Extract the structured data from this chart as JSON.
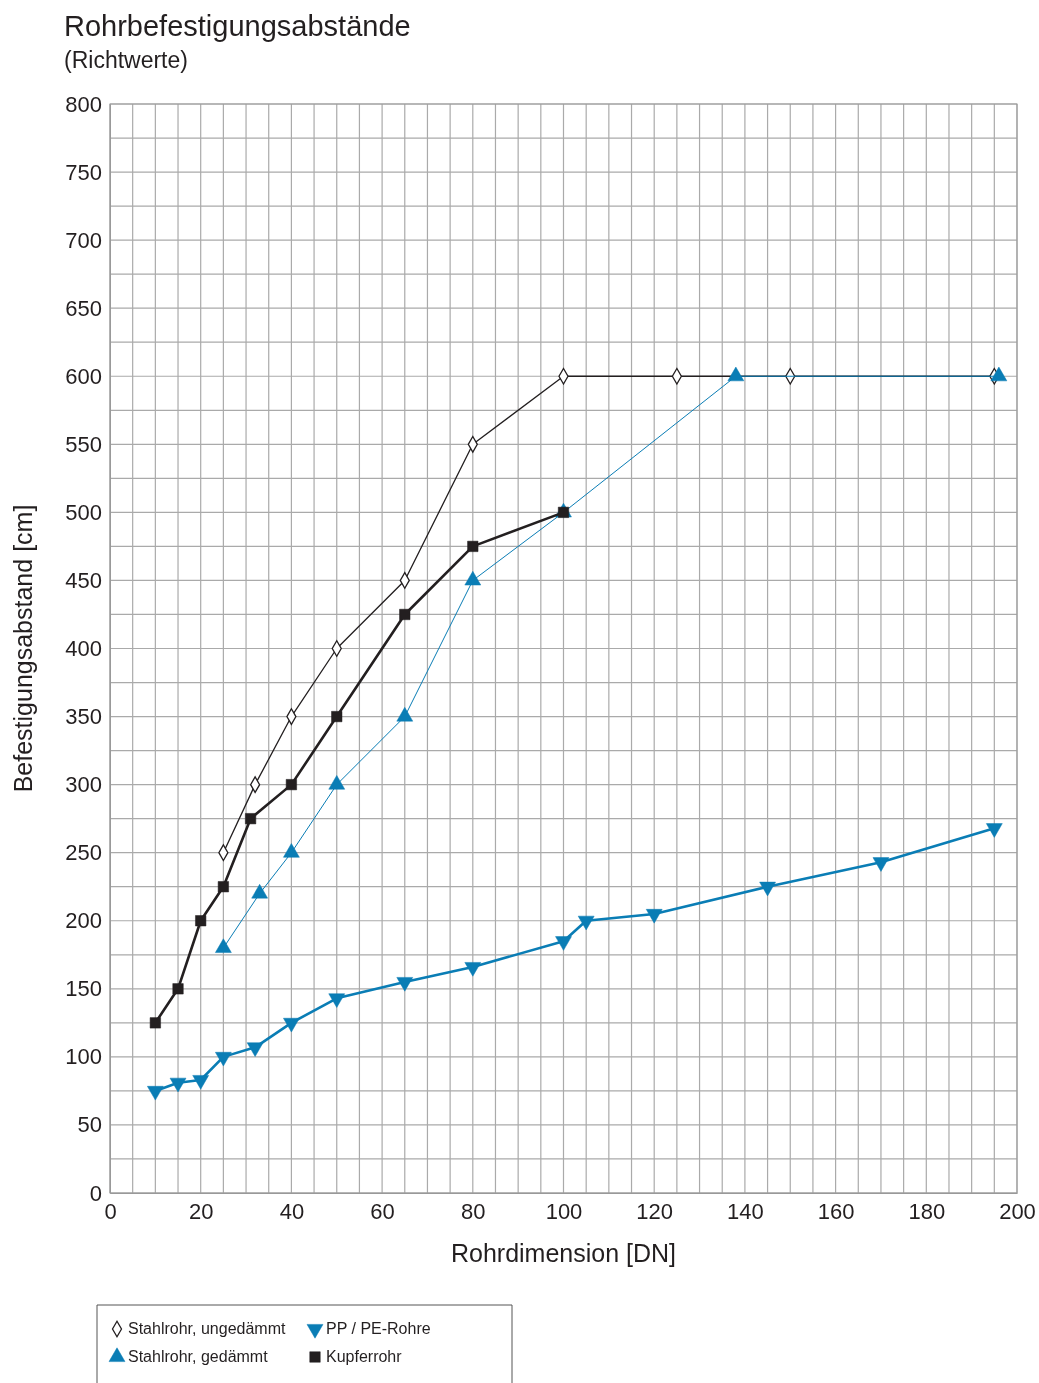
{
  "chart_data": {
    "type": "line",
    "title": "Rohrbefestigungsabstände",
    "subtitle": "(Richtwerte)",
    "xlabel": "Rohrdimension [DN]",
    "ylabel": "Befestigungsabstand [cm]",
    "xlim": [
      0,
      200
    ],
    "xticks": [
      0,
      20,
      40,
      60,
      80,
      100,
      120,
      140,
      160,
      180,
      200
    ],
    "ylim": [
      0,
      800
    ],
    "yticks": [
      0,
      50,
      100,
      150,
      200,
      250,
      300,
      350,
      400,
      450,
      500,
      550,
      600,
      650,
      700,
      750,
      800
    ],
    "grid": true,
    "legend": "bottom left",
    "series": [
      {
        "name": "Stahlrohr, ungedämmt",
        "color": "#231f20",
        "marker": "diamond",
        "x": [
          25,
          32,
          40,
          50,
          65,
          80,
          100,
          125,
          150,
          195
        ],
        "values": [
          250,
          300,
          350,
          400,
          450,
          550,
          600,
          600,
          600,
          600
        ]
      },
      {
        "name": "Stahlrohr, gedämmt",
        "color": "#0a7db5",
        "marker": "triangle",
        "x": [
          25,
          33,
          40,
          50,
          65,
          80,
          100,
          138,
          196
        ],
        "values": [
          180,
          220,
          250,
          300,
          350,
          450,
          500,
          600,
          600
        ]
      },
      {
        "name": "Kupferrohr",
        "color": "#231f20",
        "marker": "square",
        "x": [
          10,
          15,
          20,
          25,
          31,
          40,
          50,
          65,
          80,
          100
        ],
        "values": [
          125,
          150,
          200,
          225,
          275,
          300,
          350,
          425,
          475,
          500
        ]
      },
      {
        "name": "PP / PE-Rohre",
        "color": "#0a7db5",
        "marker": "triangle-down",
        "x": [
          10,
          15,
          20,
          25,
          32,
          40,
          50,
          65,
          80,
          100,
          105,
          120,
          145,
          170,
          195
        ],
        "values": [
          75,
          81,
          83,
          100,
          107,
          125,
          143,
          155,
          166,
          185,
          200,
          205,
          225,
          243,
          268
        ]
      }
    ]
  }
}
